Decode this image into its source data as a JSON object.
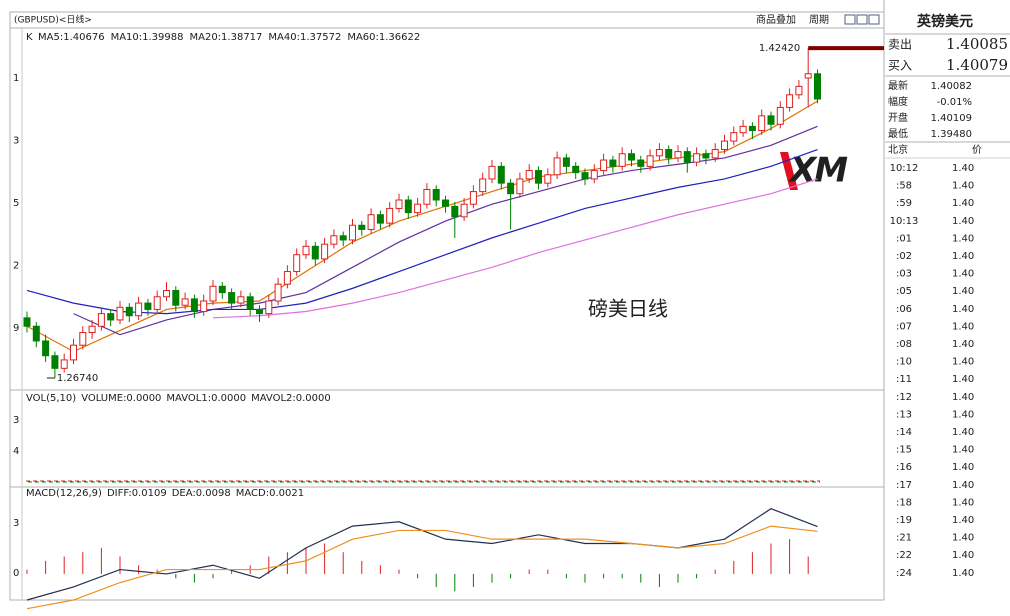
{
  "toolbar": {
    "symbol": "(GBPUSD)<日线>",
    "overlay": "商品叠加",
    "period": "周期"
  },
  "indicator_legend": {
    "k": "K",
    "ma": [
      "MA5:1.40676",
      "MA10:1.39988",
      "MA20:1.38717",
      "MA40:1.37572",
      "MA60:1.36622"
    ],
    "ma_colors": [
      "#202020",
      "#e07000",
      "#6030a0",
      "#2020c0",
      "#e070e0"
    ]
  },
  "axis_labels": {
    "price": [
      "1",
      "3",
      "5",
      "2",
      "9"
    ],
    "volume": [
      "3",
      "4"
    ],
    "macd": [
      "3",
      "0"
    ]
  },
  "volume_panel": {
    "legend": [
      "VOL(5,10)",
      "VOLUME:0.0000",
      "MAVOL1:0.0000",
      "MAVOL2:0.0000"
    ],
    "colors": [
      "#303030",
      "#303030",
      "#303030",
      "#e07000"
    ]
  },
  "macd_legend": {
    "items": [
      "MACD(12,26,9)",
      "DIFF:0.0109",
      "DEA:0.0098",
      "MACD:0.0021"
    ],
    "colors": [
      "#303030",
      "#303030",
      "#e07000",
      "#303030"
    ]
  },
  "annotation": "磅美日线",
  "logo": "XM",
  "chart_data": [
    {
      "type": "candlestick",
      "high_label": "1.42420",
      "low_label": "1.26740",
      "ylim": [
        1.2617,
        1.4328
      ],
      "up_color": "#e02020",
      "down_color": "#008000",
      "candles": [
        [
          1.296,
          1.299,
          1.289,
          1.292
        ],
        [
          1.292,
          1.294,
          1.282,
          1.285
        ],
        [
          1.285,
          1.288,
          1.275,
          1.278
        ],
        [
          1.278,
          1.28,
          1.2674,
          1.272
        ],
        [
          1.272,
          1.279,
          1.27,
          1.276
        ],
        [
          1.276,
          1.286,
          1.274,
          1.283
        ],
        [
          1.283,
          1.292,
          1.281,
          1.289
        ],
        [
          1.289,
          1.295,
          1.286,
          1.292
        ],
        [
          1.292,
          1.301,
          1.29,
          1.298
        ],
        [
          1.298,
          1.3,
          1.292,
          1.295
        ],
        [
          1.295,
          1.304,
          1.293,
          1.301
        ],
        [
          1.301,
          1.303,
          1.294,
          1.297
        ],
        [
          1.297,
          1.306,
          1.295,
          1.303
        ],
        [
          1.303,
          1.305,
          1.297,
          1.3
        ],
        [
          1.3,
          1.309,
          1.298,
          1.306
        ],
        [
          1.306,
          1.313,
          1.304,
          1.309
        ],
        [
          1.309,
          1.311,
          1.299,
          1.302
        ],
        [
          1.302,
          1.308,
          1.3,
          1.305
        ],
        [
          1.305,
          1.307,
          1.296,
          1.299
        ],
        [
          1.299,
          1.307,
          1.297,
          1.304
        ],
        [
          1.304,
          1.314,
          1.302,
          1.311
        ],
        [
          1.311,
          1.313,
          1.305,
          1.308
        ],
        [
          1.308,
          1.31,
          1.3,
          1.303
        ],
        [
          1.303,
          1.309,
          1.301,
          1.306
        ],
        [
          1.306,
          1.308,
          1.297,
          1.3
        ],
        [
          1.3,
          1.302,
          1.294,
          1.298
        ],
        [
          1.298,
          1.307,
          1.296,
          1.304
        ],
        [
          1.304,
          1.315,
          1.302,
          1.312
        ],
        [
          1.312,
          1.321,
          1.31,
          1.318
        ],
        [
          1.318,
          1.329,
          1.316,
          1.326
        ],
        [
          1.326,
          1.333,
          1.324,
          1.33
        ],
        [
          1.33,
          1.332,
          1.321,
          1.324
        ],
        [
          1.324,
          1.334,
          1.322,
          1.331
        ],
        [
          1.331,
          1.338,
          1.329,
          1.335
        ],
        [
          1.335,
          1.337,
          1.33,
          1.333
        ],
        [
          1.333,
          1.343,
          1.331,
          1.34
        ],
        [
          1.34,
          1.342,
          1.335,
          1.338
        ],
        [
          1.338,
          1.348,
          1.336,
          1.345
        ],
        [
          1.345,
          1.347,
          1.338,
          1.341
        ],
        [
          1.341,
          1.351,
          1.339,
          1.348
        ],
        [
          1.348,
          1.355,
          1.346,
          1.352
        ],
        [
          1.352,
          1.354,
          1.343,
          1.346
        ],
        [
          1.346,
          1.353,
          1.344,
          1.35
        ],
        [
          1.35,
          1.36,
          1.348,
          1.357
        ],
        [
          1.357,
          1.359,
          1.349,
          1.352
        ],
        [
          1.352,
          1.354,
          1.346,
          1.349
        ],
        [
          1.349,
          1.351,
          1.334,
          1.344
        ],
        [
          1.344,
          1.353,
          1.342,
          1.35
        ],
        [
          1.35,
          1.359,
          1.348,
          1.356
        ],
        [
          1.356,
          1.365,
          1.354,
          1.362
        ],
        [
          1.362,
          1.371,
          1.36,
          1.368
        ],
        [
          1.368,
          1.37,
          1.357,
          1.36
        ],
        [
          1.36,
          1.362,
          1.338,
          1.355
        ],
        [
          1.355,
          1.365,
          1.353,
          1.362
        ],
        [
          1.362,
          1.369,
          1.36,
          1.366
        ],
        [
          1.366,
          1.368,
          1.357,
          1.36
        ],
        [
          1.36,
          1.367,
          1.358,
          1.364
        ],
        [
          1.364,
          1.375,
          1.362,
          1.372
        ],
        [
          1.372,
          1.374,
          1.365,
          1.368
        ],
        [
          1.368,
          1.37,
          1.362,
          1.365
        ],
        [
          1.365,
          1.367,
          1.359,
          1.362
        ],
        [
          1.362,
          1.369,
          1.36,
          1.366
        ],
        [
          1.366,
          1.374,
          1.364,
          1.371
        ],
        [
          1.371,
          1.373,
          1.365,
          1.368
        ],
        [
          1.368,
          1.377,
          1.366,
          1.374
        ],
        [
          1.374,
          1.376,
          1.368,
          1.371
        ],
        [
          1.371,
          1.373,
          1.365,
          1.368
        ],
        [
          1.368,
          1.376,
          1.366,
          1.373
        ],
        [
          1.373,
          1.379,
          1.371,
          1.376
        ],
        [
          1.376,
          1.378,
          1.369,
          1.372
        ],
        [
          1.372,
          1.378,
          1.37,
          1.375
        ],
        [
          1.375,
          1.377,
          1.365,
          1.37
        ],
        [
          1.37,
          1.377,
          1.368,
          1.374
        ],
        [
          1.374,
          1.376,
          1.369,
          1.372
        ],
        [
          1.372,
          1.379,
          1.37,
          1.376
        ],
        [
          1.376,
          1.383,
          1.374,
          1.38
        ],
        [
          1.38,
          1.387,
          1.378,
          1.384
        ],
        [
          1.384,
          1.39,
          1.382,
          1.387
        ],
        [
          1.387,
          1.389,
          1.381,
          1.385
        ],
        [
          1.385,
          1.395,
          1.383,
          1.392
        ],
        [
          1.392,
          1.394,
          1.385,
          1.388
        ],
        [
          1.388,
          1.399,
          1.386,
          1.396
        ],
        [
          1.396,
          1.405,
          1.394,
          1.402
        ],
        [
          1.402,
          1.409,
          1.4,
          1.406
        ],
        [
          1.41,
          1.4242,
          1.396,
          1.412
        ],
        [
          1.412,
          1.414,
          1.398,
          1.4
        ]
      ],
      "x": [
        0,
        5,
        10,
        15,
        20,
        25,
        30,
        35,
        40,
        45,
        50,
        55,
        60,
        65,
        70,
        75,
        80,
        85
      ],
      "series": [
        {
          "color": "#e07000",
          "values": [
            1.292,
            1.28,
            1.29,
            1.3,
            1.303,
            1.304,
            1.318,
            1.332,
            1.342,
            1.349,
            1.356,
            1.363,
            1.366,
            1.369,
            1.372,
            1.375,
            1.386,
            1.399
          ]
        },
        {
          "color": "#6030a0",
          "values": [
            null,
            1.298,
            1.288,
            1.295,
            1.3,
            1.303,
            1.308,
            1.32,
            1.332,
            1.342,
            1.35,
            1.356,
            1.362,
            1.366,
            1.369,
            1.372,
            1.378,
            1.387
          ]
        },
        {
          "color": "#2020c0",
          "values": [
            1.309,
            1.303,
            1.299,
            1.298,
            1.3,
            1.3,
            1.303,
            1.31,
            1.318,
            1.326,
            1.334,
            1.341,
            1.348,
            1.353,
            1.358,
            1.362,
            1.368,
            1.376
          ]
        },
        {
          "color": "#e070e0",
          "values": [
            null,
            null,
            null,
            null,
            1.296,
            1.297,
            1.299,
            1.303,
            1.308,
            1.314,
            1.32,
            1.327,
            1.333,
            1.339,
            1.345,
            1.35,
            1.355,
            1.362
          ]
        }
      ]
    },
    {
      "type": "macd",
      "ylim": [
        -0.006,
        0.02
      ],
      "x": [
        0,
        5,
        10,
        15,
        20,
        25,
        30,
        35,
        40,
        45,
        50,
        55,
        60,
        65,
        70,
        75,
        80,
        85
      ],
      "series": [
        {
          "color": "#203050",
          "values": [
            -0.006,
            -0.003,
            0.001,
            0.0,
            0.002,
            -0.001,
            0.006,
            0.011,
            0.012,
            0.008,
            0.007,
            0.009,
            0.007,
            0.007,
            0.006,
            0.008,
            0.015,
            0.0109
          ]
        },
        {
          "color": "#f09020",
          "values": [
            -0.008,
            -0.006,
            -0.002,
            0.001,
            0.001,
            0.001,
            0.003,
            0.008,
            0.01,
            0.01,
            0.008,
            0.008,
            0.008,
            0.007,
            0.006,
            0.007,
            0.011,
            0.0098
          ]
        }
      ],
      "hist": [
        0.001,
        0.003,
        0.004,
        0.005,
        0.006,
        0.004,
        0.002,
        0.001,
        -0.001,
        -0.002,
        -0.001,
        0.001,
        0.002,
        0.004,
        0.005,
        0.006,
        0.007,
        0.005,
        0.003,
        0.002,
        0.001,
        -0.001,
        -0.003,
        -0.004,
        -0.003,
        -0.002,
        -0.001,
        0.001,
        0.001,
        -0.001,
        -0.002,
        -0.001,
        -0.001,
        -0.002,
        -0.003,
        -0.002,
        -0.001,
        0.001,
        0.003,
        0.005,
        0.007,
        0.008,
        0.004
      ],
      "up_color": "#e02020",
      "down_color": "#008000"
    }
  ],
  "quote_panel": {
    "title": "英镑美元",
    "bid_ask": [
      {
        "label": "卖出",
        "value": "1.40085"
      },
      {
        "label": "买入",
        "value": "1.40079"
      }
    ],
    "stats": [
      {
        "label": "最新",
        "value": "1.40082",
        "color": "#202020"
      },
      {
        "label": "幅度",
        "value": "-0.01%",
        "color": "#202020"
      },
      {
        "label": "开盘",
        "value": "1.40109",
        "color": "#d00000"
      },
      {
        "label": "最低",
        "value": "1.39480",
        "color": "#202020"
      }
    ],
    "ticks_header": {
      "time": "北京",
      "price": "价"
    },
    "ticks": [
      [
        "10:12",
        "1.40"
      ],
      [
        ":58",
        "1.40"
      ],
      [
        ":59",
        "1.40"
      ],
      [
        "10:13",
        "1.40"
      ],
      [
        ":01",
        "1.40"
      ],
      [
        ":02",
        "1.40"
      ],
      [
        ":03",
        "1.40"
      ],
      [
        ":05",
        "1.40"
      ],
      [
        ":06",
        "1.40"
      ],
      [
        ":07",
        "1.40"
      ],
      [
        ":08",
        "1.40"
      ],
      [
        ":10",
        "1.40"
      ],
      [
        ":11",
        "1.40"
      ],
      [
        ":12",
        "1.40"
      ],
      [
        ":13",
        "1.40"
      ],
      [
        ":14",
        "1.40"
      ],
      [
        ":15",
        "1.40"
      ],
      [
        ":16",
        "1.40"
      ],
      [
        ":17",
        "1.40"
      ],
      [
        ":18",
        "1.40"
      ],
      [
        ":19",
        "1.40"
      ],
      [
        ":21",
        "1.40"
      ],
      [
        ":22",
        "1.40"
      ],
      [
        ":24",
        "1.40"
      ]
    ]
  }
}
